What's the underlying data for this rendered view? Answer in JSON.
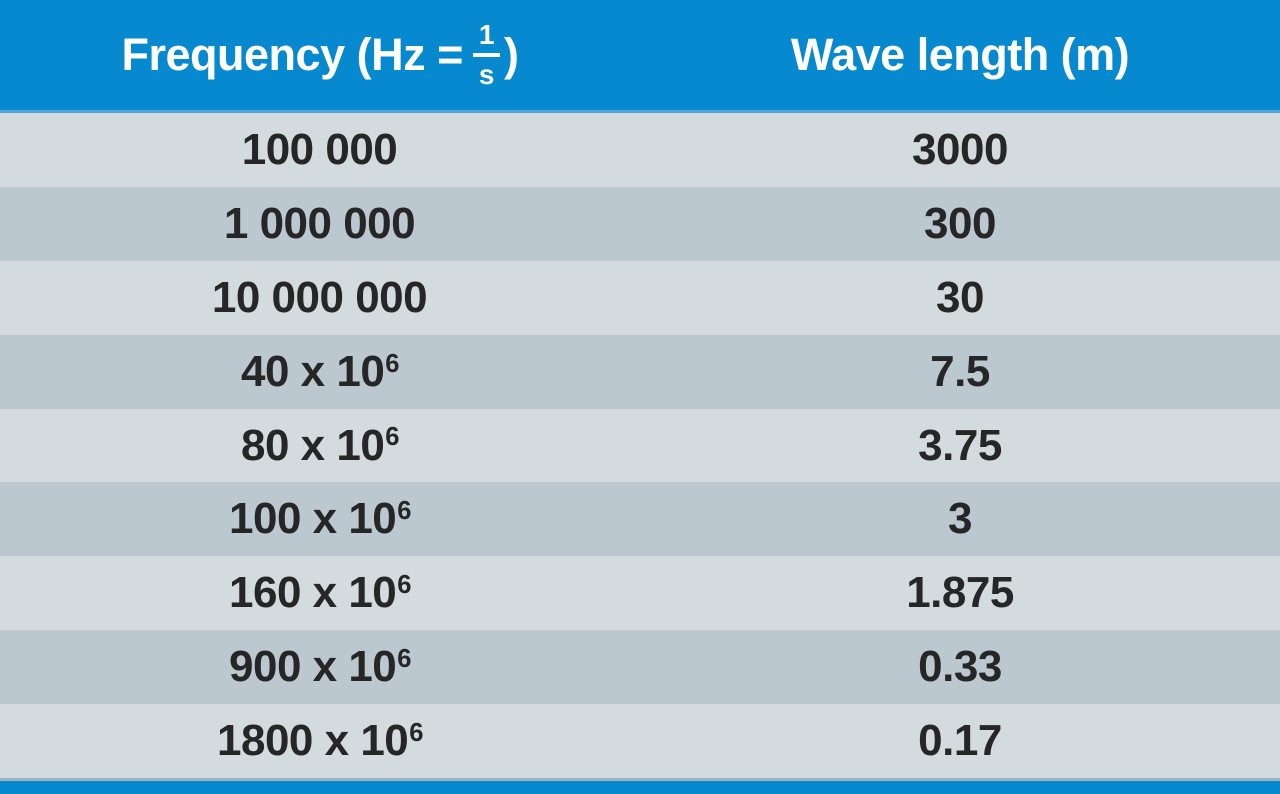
{
  "colors": {
    "header_blue": "#0789cf",
    "header_separator": "#4fa6d8",
    "row_light": "#d3dbdf",
    "row_dark": "#bcc8d0",
    "bottom_line": "#9fb2bc",
    "bottom_bar": "#0789cf",
    "text_dark": "#262626",
    "text_header": "#ffffff"
  },
  "header": {
    "frequency_prefix": "Frequency (Hz = ",
    "fraction_numerator": "1",
    "fraction_denominator": "s",
    "frequency_suffix": ")",
    "wavelength": "Wave length (m)"
  },
  "table": {
    "rows": [
      {
        "freq_base": "100 000",
        "freq_exp": "",
        "wavelength": "3000"
      },
      {
        "freq_base": "1 000 000",
        "freq_exp": "",
        "wavelength": "300"
      },
      {
        "freq_base": "10 000 000",
        "freq_exp": "",
        "wavelength": "30"
      },
      {
        "freq_base": "40 x 10",
        "freq_exp": "6",
        "wavelength": "7.5"
      },
      {
        "freq_base": "80 x 10",
        "freq_exp": "6",
        "wavelength": "3.75"
      },
      {
        "freq_base": "100 x 10",
        "freq_exp": "6",
        "wavelength": "3"
      },
      {
        "freq_base": "160 x 10",
        "freq_exp": "6",
        "wavelength": "1.875"
      },
      {
        "freq_base": "900 x 10",
        "freq_exp": "6",
        "wavelength": "0.33"
      },
      {
        "freq_base": "1800 x 10",
        "freq_exp": "6",
        "wavelength": "0.17"
      }
    ]
  },
  "chart_data": {
    "type": "table",
    "columns": [
      "Frequency (Hz = 1/s)",
      "Wave length (m)"
    ],
    "rows": [
      [
        "100 000",
        "3000"
      ],
      [
        "1 000 000",
        "300"
      ],
      [
        "10 000 000",
        "30"
      ],
      [
        "40 x 10^6",
        "7.5"
      ],
      [
        "80 x 10^6",
        "3.75"
      ],
      [
        "100 x 10^6",
        "3"
      ],
      [
        "160 x 10^6",
        "1.875"
      ],
      [
        "900 x 10^6",
        "0.33"
      ],
      [
        "1800 x 10^6",
        "0.17"
      ]
    ],
    "frequencies_hz": [
      100000,
      1000000,
      10000000,
      40000000,
      80000000,
      100000000,
      160000000,
      900000000,
      1800000000
    ],
    "wavelengths_m": [
      3000,
      300,
      30,
      7.5,
      3.75,
      3,
      1.875,
      0.33,
      0.17
    ]
  }
}
